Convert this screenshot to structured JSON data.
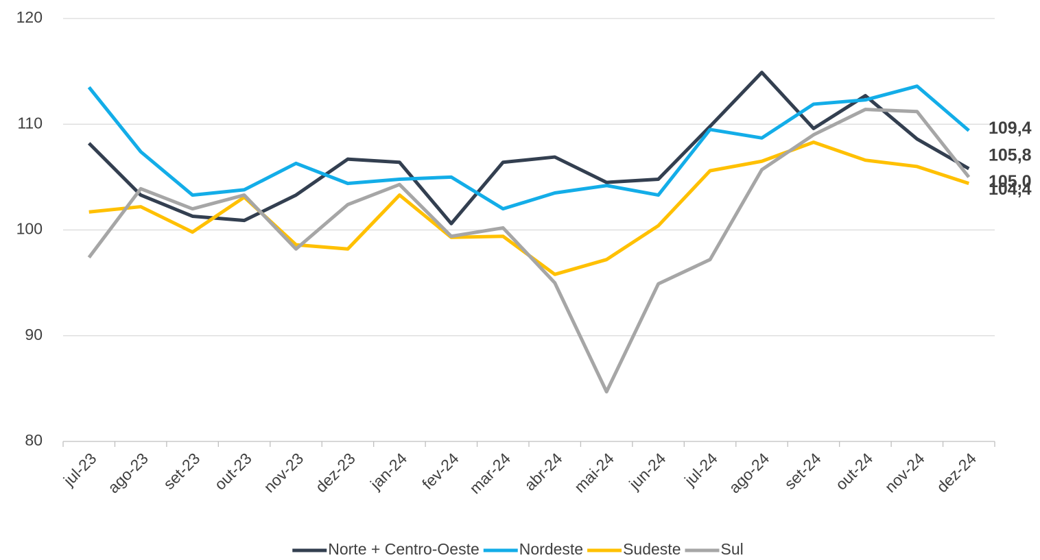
{
  "chart_data": {
    "type": "line",
    "categories": [
      "jul-23",
      "ago-23",
      "set-23",
      "out-23",
      "nov-23",
      "dez-23",
      "jan-24",
      "fev-24",
      "mar-24",
      "abr-24",
      "mai-24",
      "jun-24",
      "jul-24",
      "ago-24",
      "set-24",
      "out-24",
      "nov-24",
      "dez-24"
    ],
    "series": [
      {
        "name": "Norte + Centro-Oeste",
        "color": "#333f50",
        "label_color": "#333f50",
        "values": [
          108.2,
          103.3,
          101.3,
          100.9,
          103.3,
          106.7,
          106.4,
          100.6,
          106.4,
          106.9,
          104.5,
          104.8,
          109.8,
          114.9,
          109.6,
          112.7,
          108.6,
          105.8
        ],
        "value_labels": [
          null,
          null,
          null,
          null,
          null,
          null,
          null,
          null,
          null,
          null,
          null,
          null,
          null,
          null,
          null,
          null,
          null,
          "105,8"
        ]
      },
      {
        "name": "Nordeste",
        "color": "#13ade8",
        "label_color": "#13ade8",
        "values": [
          113.5,
          107.4,
          103.3,
          103.8,
          106.3,
          104.4,
          104.8,
          105.0,
          102.0,
          103.5,
          104.2,
          103.3,
          109.5,
          108.7,
          111.9,
          112.3,
          113.6,
          109.4
        ],
        "value_labels": [
          null,
          null,
          null,
          null,
          null,
          null,
          null,
          null,
          null,
          null,
          null,
          null,
          null,
          null,
          null,
          null,
          null,
          "109,4"
        ]
      },
      {
        "name": "Sudeste",
        "color": "#ffc000",
        "label_color": "#bf9000",
        "values": [
          101.7,
          102.2,
          99.8,
          103.1,
          98.6,
          98.2,
          103.3,
          99.3,
          99.4,
          95.8,
          97.2,
          100.4,
          105.6,
          106.5,
          108.3,
          106.6,
          106.0,
          104.4
        ],
        "value_labels": [
          null,
          null,
          null,
          null,
          null,
          null,
          null,
          null,
          null,
          null,
          null,
          null,
          null,
          null,
          null,
          null,
          null,
          "104,4"
        ]
      },
      {
        "name": "Sul",
        "color": "#a6a6a6",
        "label_color": "#8c8c8c",
        "values": [
          97.4,
          103.9,
          102.0,
          103.3,
          98.2,
          102.4,
          104.3,
          99.4,
          100.2,
          95.0,
          84.7,
          94.9,
          97.2,
          105.7,
          109.0,
          111.4,
          111.2,
          105.0
        ],
        "value_labels": [
          null,
          null,
          null,
          null,
          null,
          null,
          null,
          null,
          null,
          null,
          null,
          null,
          null,
          null,
          null,
          null,
          null,
          "105,0"
        ]
      }
    ],
    "ylim": [
      80,
      120
    ],
    "yticks": [
      80,
      90,
      100,
      110,
      120
    ],
    "grid": true,
    "legend": "bottom"
  }
}
